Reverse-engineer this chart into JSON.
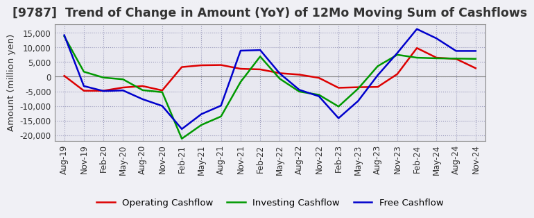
{
  "title": "[9787]  Trend of Change in Amount (YoY) of 12Mo Moving Sum of Cashflows",
  "ylabel": "Amount (million yen)",
  "xlabels": [
    "Aug-19",
    "Nov-19",
    "Feb-20",
    "May-20",
    "Aug-20",
    "Nov-20",
    "Feb-21",
    "May-21",
    "Aug-21",
    "Nov-21",
    "Feb-22",
    "May-22",
    "Aug-22",
    "Nov-22",
    "Feb-23",
    "May-23",
    "Aug-23",
    "Nov-23",
    "Feb-24",
    "May-24",
    "Aug-24",
    "Nov-24"
  ],
  "operating": [
    300,
    -4800,
    -4800,
    -3700,
    -3200,
    -4700,
    3300,
    3900,
    4000,
    2700,
    2500,
    1200,
    700,
    -400,
    -3800,
    -3600,
    -3500,
    900,
    9800,
    6500,
    6100,
    2900
  ],
  "investing": [
    13800,
    1700,
    -300,
    -900,
    -4600,
    -5300,
    -21200,
    -16500,
    -13600,
    -1800,
    6900,
    -700,
    -5100,
    -6200,
    -10200,
    -4100,
    3600,
    7500,
    6500,
    6300,
    6200,
    6100
  ],
  "free": [
    14200,
    -3200,
    -4900,
    -4700,
    -7700,
    -10000,
    -17900,
    -12800,
    -9900,
    8900,
    9100,
    1100,
    -4500,
    -6700,
    -14200,
    -8300,
    500,
    8100,
    16300,
    13100,
    8800,
    8800
  ],
  "ylim": [
    -22000,
    18000
  ],
  "yticks": [
    -20000,
    -15000,
    -10000,
    -5000,
    0,
    5000,
    10000,
    15000
  ],
  "operating_color": "#dd0000",
  "investing_color": "#009900",
  "free_color": "#0000cc",
  "bg_color": "#f0f0f5",
  "plot_bg_color": "#e8e8f0",
  "grid_color": "#9999bb",
  "zero_line_color": "#888888",
  "title_color": "#333333",
  "title_fontsize": 12.5,
  "label_fontsize": 9.5,
  "tick_fontsize": 8.5,
  "legend_fontsize": 9.5
}
